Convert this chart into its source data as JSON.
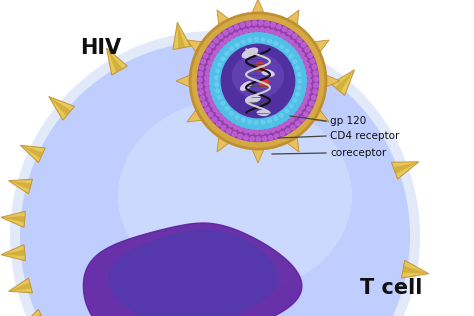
{
  "background_color": "#ffffff",
  "hiv_label": "HIV",
  "tcell_label": "T cell",
  "annotations": [
    "gp 120",
    "CD4 receptor",
    "coreceptor"
  ],
  "colors": {
    "outer_gold": "#D4A843",
    "outer_gold_dark": "#C09030",
    "outer_gold_light": "#E8C060",
    "purple_layer": "#C060D0",
    "purple_layer2": "#9040B0",
    "blue_inner": "#50C0E8",
    "blue_inner2": "#70D0F0",
    "inner_purple": "#6030A0",
    "dna_dark": "#202020",
    "dna_grey": "#C0C0C0",
    "dna_white": "#E8E8F0",
    "red_dot": "#E03030",
    "tcell_blue_light": "#C0CEFF",
    "tcell_blue": "#A0B4E8",
    "tcell_blue_dark": "#8090C8",
    "tcell_nucleus_purple": "#6020A0",
    "tcell_nucleus_blue": "#3030B0",
    "spike_gold": "#C8A030",
    "spike_gold_light": "#E8C850",
    "text_dark": "#111111"
  }
}
